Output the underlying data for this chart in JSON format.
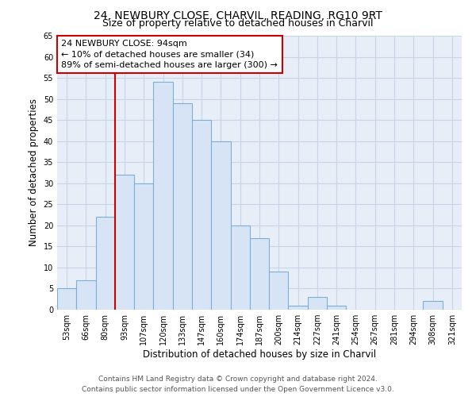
{
  "title": "24, NEWBURY CLOSE, CHARVIL, READING, RG10 9RT",
  "subtitle": "Size of property relative to detached houses in Charvil",
  "xlabel": "Distribution of detached houses by size in Charvil",
  "ylabel": "Number of detached properties",
  "bar_labels": [
    "53sqm",
    "66sqm",
    "80sqm",
    "93sqm",
    "107sqm",
    "120sqm",
    "133sqm",
    "147sqm",
    "160sqm",
    "174sqm",
    "187sqm",
    "200sqm",
    "214sqm",
    "227sqm",
    "241sqm",
    "254sqm",
    "267sqm",
    "281sqm",
    "294sqm",
    "308sqm",
    "321sqm"
  ],
  "bar_values": [
    5,
    7,
    22,
    32,
    30,
    54,
    49,
    45,
    40,
    20,
    17,
    9,
    1,
    3,
    1,
    0,
    0,
    0,
    0,
    2,
    0
  ],
  "bar_color": "#d6e4f5",
  "bar_edge_color": "#7bafd4",
  "vline_index": 3,
  "annotation_title": "24 NEWBURY CLOSE: 94sqm",
  "annotation_line1": "← 10% of detached houses are smaller (34)",
  "annotation_line2": "89% of semi-detached houses are larger (300) →",
  "vline_color": "#cc0000",
  "annotation_box_edge": "#cc0000",
  "ylim": [
    0,
    65
  ],
  "yticks": [
    0,
    5,
    10,
    15,
    20,
    25,
    30,
    35,
    40,
    45,
    50,
    55,
    60,
    65
  ],
  "footer_line1": "Contains HM Land Registry data © Crown copyright and database right 2024.",
  "footer_line2": "Contains public sector information licensed under the Open Government Licence v3.0.",
  "bg_color": "#ffffff",
  "plot_bg_color": "#e8eef7",
  "grid_color": "#c8d4e8",
  "title_fontsize": 10,
  "subtitle_fontsize": 9,
  "axis_label_fontsize": 8.5,
  "tick_fontsize": 7,
  "footer_fontsize": 6.5,
  "annotation_fontsize": 8
}
